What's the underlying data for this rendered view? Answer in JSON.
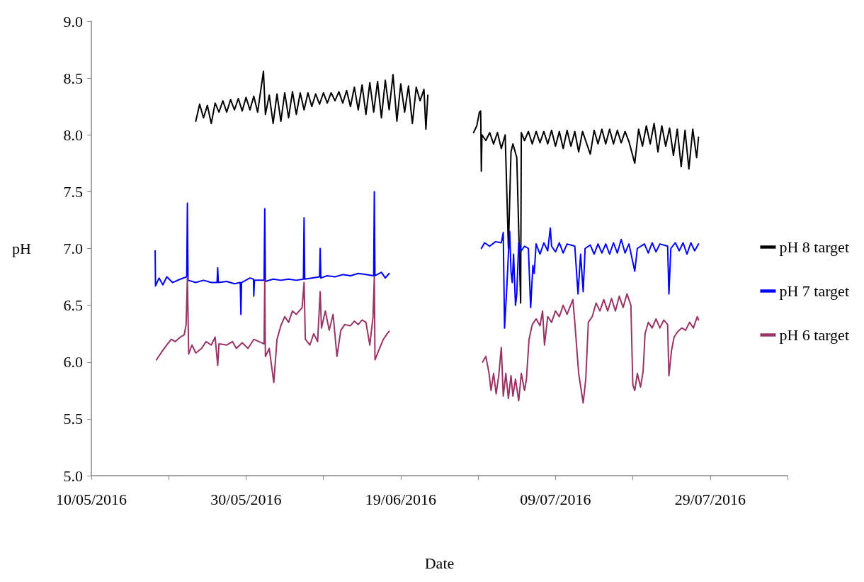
{
  "chart_data": {
    "type": "line",
    "xlabel": "Date",
    "ylabel": "pH",
    "xlim": [
      "2016-05-10",
      "2016-08-08"
    ],
    "xticks": [
      {
        "value": "2016-05-10",
        "label": "10/05/2016"
      },
      {
        "value": "2016-05-20",
        "label": null
      },
      {
        "value": "2016-05-30",
        "label": "30/05/2016"
      },
      {
        "value": "2016-06-09",
        "label": null
      },
      {
        "value": "2016-06-19",
        "label": "19/06/2016"
      },
      {
        "value": "2016-06-29",
        "label": null
      },
      {
        "value": "2016-07-09",
        "label": "09/07/2016"
      },
      {
        "value": "2016-07-19",
        "label": null
      },
      {
        "value": "2016-07-29",
        "label": "29/07/2016"
      },
      {
        "value": "2016-08-08",
        "label": null
      }
    ],
    "ylim": [
      5,
      9
    ],
    "yticks": [
      {
        "value": 5,
        "label": "5.0"
      },
      {
        "value": 5.5,
        "label": "5.5"
      },
      {
        "value": 6,
        "label": "6.0"
      },
      {
        "value": 6.5,
        "label": "6.5"
      },
      {
        "value": 7,
        "label": "7.0"
      },
      {
        "value": 7.5,
        "label": "7.5"
      },
      {
        "value": 8,
        "label": "8.0"
      },
      {
        "value": 8.5,
        "label": "8.5"
      },
      {
        "value": 9,
        "label": "9.0"
      }
    ],
    "grid": false,
    "legend": "right",
    "marker": "none",
    "line_style": "solid",
    "series": [
      {
        "name": "pH 8 target",
        "color": "#000000",
        "x": [
          "2016-05-23T12:00",
          "2016-05-24T00:00",
          "2016-05-24T12:00",
          "2016-05-25T00:00",
          "2016-05-25T12:00",
          "2016-05-26T00:00",
          "2016-05-26T12:00",
          "2016-05-27T00:00",
          "2016-05-27T12:00",
          "2016-05-28T00:00",
          "2016-05-28T12:00",
          "2016-05-29T00:00",
          "2016-05-29T12:00",
          "2016-05-30T00:00",
          "2016-05-30T12:00",
          "2016-05-31T00:00",
          "2016-05-31T12:00",
          "2016-06-01T06:00",
          "2016-06-01T12:00",
          "2016-06-02T00:00",
          "2016-06-02T12:00",
          "2016-06-03T00:00",
          "2016-06-03T12:00",
          "2016-06-04T00:00",
          "2016-06-04T12:00",
          "2016-06-05T00:00",
          "2016-06-05T12:00",
          "2016-06-06T00:00",
          "2016-06-06T12:00",
          "2016-06-07T00:00",
          "2016-06-07T12:00",
          "2016-06-08T00:00",
          "2016-06-08T12:00",
          "2016-06-09T00:00",
          "2016-06-09T12:00",
          "2016-06-10T00:00",
          "2016-06-10T12:00",
          "2016-06-11T00:00",
          "2016-06-11T12:00",
          "2016-06-12T00:00",
          "2016-06-12T12:00",
          "2016-06-13T00:00",
          "2016-06-13T12:00",
          "2016-06-14T00:00",
          "2016-06-14T12:00",
          "2016-06-15T00:00",
          "2016-06-15T12:00",
          "2016-06-16T00:00",
          "2016-06-16T12:00",
          "2016-06-17T00:00",
          "2016-06-17T12:00",
          "2016-06-18T00:00",
          "2016-06-18T12:00",
          "2016-06-19T00:00",
          "2016-06-19T12:00",
          "2016-06-20T00:00",
          "2016-06-20T12:00",
          "2016-06-21T00:00",
          "2016-06-21T12:00",
          "2016-06-22T00:00",
          "2016-06-22T06:00",
          "2016-06-22T12:00",
          "2016-06-25T00:00",
          "2016-06-28T10:00",
          "2016-06-28T20:00",
          "2016-06-29T04:00",
          "2016-06-29T08:00",
          "2016-06-29T10:00",
          "2016-06-29T12:00",
          "2016-06-30T00:00",
          "2016-06-30T12:00",
          "2016-07-01T00:00",
          "2016-07-01T12:00",
          "2016-07-02T00:00",
          "2016-07-02T12:00",
          "2016-07-02T22:00",
          "2016-07-03T06:00",
          "2016-07-03T12:00",
          "2016-07-04T00:00",
          "2016-07-04T12:00",
          "2016-07-04T14:00",
          "2016-07-05T00:00",
          "2016-07-05T12:00",
          "2016-07-06T00:00",
          "2016-07-06T12:00",
          "2016-07-07T00:00",
          "2016-07-07T12:00",
          "2016-07-08T00:00",
          "2016-07-08T12:00",
          "2016-07-09T00:00",
          "2016-07-09T12:00",
          "2016-07-10T00:00",
          "2016-07-10T12:00",
          "2016-07-11T00:00",
          "2016-07-11T12:00",
          "2016-07-12T00:00",
          "2016-07-12T12:00",
          "2016-07-13T12:00",
          "2016-07-14T00:00",
          "2016-07-14T12:00",
          "2016-07-15T00:00",
          "2016-07-15T12:00",
          "2016-07-16T00:00",
          "2016-07-16T12:00",
          "2016-07-17T00:00",
          "2016-07-17T12:00",
          "2016-07-18T00:00",
          "2016-07-18T12:00",
          "2016-07-19T06:00",
          "2016-07-19T18:00",
          "2016-07-20T06:00",
          "2016-07-20T18:00",
          "2016-07-21T06:00",
          "2016-07-21T18:00",
          "2016-07-22T06:00",
          "2016-07-22T18:00",
          "2016-07-23T06:00",
          "2016-07-23T18:00",
          "2016-07-24T06:00",
          "2016-07-24T18:00",
          "2016-07-25T06:00",
          "2016-07-25T18:00",
          "2016-07-26T06:00",
          "2016-07-26T18:00",
          "2016-07-27T06:00",
          "2016-07-27T12:00"
        ],
        "values": [
          8.12,
          8.27,
          8.15,
          8.26,
          8.1,
          8.28,
          8.2,
          8.3,
          8.2,
          8.31,
          8.22,
          8.32,
          8.21,
          8.33,
          8.22,
          8.34,
          8.2,
          8.56,
          8.18,
          8.35,
          8.1,
          8.36,
          8.12,
          8.37,
          8.15,
          8.38,
          8.18,
          8.37,
          8.22,
          8.37,
          8.25,
          8.36,
          8.27,
          8.37,
          8.28,
          8.37,
          8.3,
          8.38,
          8.28,
          8.39,
          8.25,
          8.42,
          8.22,
          8.44,
          8.18,
          8.46,
          8.2,
          8.47,
          8.15,
          8.48,
          8.22,
          8.53,
          8.12,
          8.45,
          8.2,
          8.43,
          8.1,
          8.42,
          8.3,
          8.4,
          8.05,
          8.35,
          null,
          8.02,
          8.08,
          8.2,
          8.21,
          7.68,
          8.0,
          7.95,
          8.02,
          7.92,
          8.02,
          7.88,
          8.0,
          7.0,
          7.85,
          7.92,
          7.8,
          6.52,
          8.02,
          7.95,
          8.03,
          7.92,
          8.03,
          7.93,
          8.03,
          7.92,
          8.04,
          7.9,
          8.03,
          7.88,
          8.04,
          7.9,
          8.03,
          7.85,
          8.03,
          7.83,
          8.04,
          7.92,
          8.05,
          7.92,
          8.05,
          7.92,
          8.04,
          7.93,
          8.03,
          7.94,
          7.75,
          8.05,
          7.9,
          8.08,
          7.92,
          8.1,
          7.85,
          8.08,
          7.9,
          8.06,
          7.82,
          8.05,
          7.72,
          8.04,
          7.7,
          8.05,
          7.8,
          7.98
        ]
      },
      {
        "name": "pH 7 target",
        "color": "#0000ff",
        "x": [
          "2016-05-18T06:00",
          "2016-05-18T07:00",
          "2016-05-18T18:00",
          "2016-05-19T06:00",
          "2016-05-19T18:00",
          "2016-05-20T12:00",
          "2016-05-21T12:00",
          "2016-05-22T08:00",
          "2016-05-22T10:00",
          "2016-05-22T12:00",
          "2016-05-23T12:00",
          "2016-05-24T12:00",
          "2016-05-25T12:00",
          "2016-05-26T06:00",
          "2016-05-26T08:00",
          "2016-05-26T10:00",
          "2016-05-27T12:00",
          "2016-05-28T12:00",
          "2016-05-29T06:00",
          "2016-05-29T08:00",
          "2016-05-29T10:00",
          "2016-05-30T12:00",
          "2016-05-30T23:00",
          "2016-05-31T00:00",
          "2016-05-31T02:00",
          "2016-06-01T08:00",
          "2016-06-01T10:00",
          "2016-06-01T12:00",
          "2016-06-02T12:00",
          "2016-06-03T12:00",
          "2016-06-04T12:00",
          "2016-06-05T12:00",
          "2016-06-06T10:00",
          "2016-06-06T12:00",
          "2016-06-06T14:00",
          "2016-06-07T12:00",
          "2016-06-08T12:00",
          "2016-06-08T14:00",
          "2016-06-08T16:00",
          "2016-06-09T12:00",
          "2016-06-10T12:00",
          "2016-06-11T12:00",
          "2016-06-12T12:00",
          "2016-06-13T12:00",
          "2016-06-14T12:00",
          "2016-06-15T12:00",
          "2016-06-15T14:00",
          "2016-06-15T16:00",
          "2016-06-16T12:00",
          "2016-06-17T00:00",
          "2016-06-17T12:00",
          "2016-06-25T00:00",
          "2016-06-29T10:00",
          "2016-06-29T20:00",
          "2016-06-30T12:00",
          "2016-07-01T06:00",
          "2016-07-02T00:00",
          "2016-07-02T06:00",
          "2016-07-02T10:00",
          "2016-07-02T16:00",
          "2016-07-02T22:00",
          "2016-07-03T02:00",
          "2016-07-03T06:00",
          "2016-07-03T10:00",
          "2016-07-03T14:00",
          "2016-07-03T20:00",
          "2016-07-04T00:00",
          "2016-07-04T06:00",
          "2016-07-04T14:00",
          "2016-07-05T00:00",
          "2016-07-05T12:00",
          "2016-07-05T19:00",
          "2016-07-06T02:00",
          "2016-07-06T06:00",
          "2016-07-06T12:00",
          "2016-07-07T00:00",
          "2016-07-07T12:00",
          "2016-07-08T00:00",
          "2016-07-08T08:00",
          "2016-07-08T12:00",
          "2016-07-09T00:00",
          "2016-07-09T12:00",
          "2016-07-10T00:00",
          "2016-07-10T12:00",
          "2016-07-11T12:00",
          "2016-07-11T22:00",
          "2016-07-12T06:00",
          "2016-07-12T14:00",
          "2016-07-12T20:00",
          "2016-07-13T12:00",
          "2016-07-14T00:00",
          "2016-07-14T12:00",
          "2016-07-15T00:00",
          "2016-07-15T12:00",
          "2016-07-16T00:00",
          "2016-07-16T12:00",
          "2016-07-17T00:00",
          "2016-07-17T12:00",
          "2016-07-18T00:00",
          "2016-07-18T12:00",
          "2016-07-19T06:00",
          "2016-07-19T14:00",
          "2016-07-20T12:00",
          "2016-07-21T00:00",
          "2016-07-21T12:00",
          "2016-07-22T00:00",
          "2016-07-22T12:00",
          "2016-07-23T12:00",
          "2016-07-23T16:00",
          "2016-07-23T22:00",
          "2016-07-24T12:00",
          "2016-07-25T00:00",
          "2016-07-25T12:00",
          "2016-07-26T00:00",
          "2016-07-26T12:00",
          "2016-07-27T00:00",
          "2016-07-27T12:00"
        ],
        "values": [
          6.98,
          6.67,
          6.74,
          6.68,
          6.75,
          6.7,
          6.73,
          6.75,
          7.4,
          6.72,
          6.7,
          6.72,
          6.7,
          6.7,
          6.83,
          6.7,
          6.71,
          6.69,
          6.7,
          6.42,
          6.7,
          6.74,
          6.73,
          6.58,
          6.72,
          6.72,
          7.35,
          6.71,
          6.73,
          6.72,
          6.73,
          6.72,
          6.73,
          7.27,
          6.73,
          6.74,
          6.75,
          7.0,
          6.74,
          6.76,
          6.75,
          6.77,
          6.76,
          6.78,
          6.77,
          6.76,
          7.5,
          6.76,
          6.79,
          6.74,
          6.78,
          null,
          7.0,
          7.05,
          7.02,
          7.06,
          7.05,
          7.14,
          6.3,
          6.6,
          6.95,
          7.15,
          6.8,
          6.7,
          6.95,
          6.5,
          6.6,
          7.05,
          6.98,
          7.02,
          7.0,
          6.48,
          6.85,
          6.78,
          7.04,
          6.95,
          7.05,
          6.98,
          7.18,
          7.02,
          6.97,
          7.05,
          6.96,
          7.04,
          7.02,
          6.6,
          6.95,
          6.62,
          7.0,
          7.03,
          6.95,
          7.04,
          6.96,
          7.04,
          6.95,
          7.05,
          6.96,
          7.08,
          6.96,
          7.04,
          6.8,
          7.0,
          7.04,
          6.96,
          7.05,
          6.97,
          7.04,
          7.02,
          6.6,
          7.0,
          7.05,
          6.98,
          7.05,
          6.95,
          7.05,
          6.98,
          7.04
        ]
      },
      {
        "name": "pH 6 target",
        "color": "#993366",
        "x": [
          "2016-05-18T10:00",
          "2016-05-19T00:00",
          "2016-05-19T18:00",
          "2016-05-20T08:00",
          "2016-05-20T20:00",
          "2016-05-21T12:00",
          "2016-05-22T00:00",
          "2016-05-22T06:00",
          "2016-05-22T10:00",
          "2016-05-22T14:00",
          "2016-05-23T00:00",
          "2016-05-23T12:00",
          "2016-05-24T06:00",
          "2016-05-24T20:00",
          "2016-05-25T12:00",
          "2016-05-26T00:00",
          "2016-05-26T08:00",
          "2016-05-26T12:00",
          "2016-05-27T12:00",
          "2016-05-28T06:00",
          "2016-05-28T18:00",
          "2016-05-29T12:00",
          "2016-05-30T06:00",
          "2016-05-31T00:00",
          "2016-06-01T08:00",
          "2016-06-01T10:00",
          "2016-06-01T12:00",
          "2016-06-02T00:00",
          "2016-06-02T14:00",
          "2016-06-03T00:00",
          "2016-06-03T12:00",
          "2016-06-04T00:00",
          "2016-06-04T12:00",
          "2016-06-05T00:00",
          "2016-06-05T12:00",
          "2016-06-06T06:00",
          "2016-06-06T12:00",
          "2016-06-06T16:00",
          "2016-06-07T06:00",
          "2016-06-07T18:00",
          "2016-06-08T06:00",
          "2016-06-08T14:00",
          "2016-06-08T18:00",
          "2016-06-09T06:00",
          "2016-06-09T18:00",
          "2016-06-10T06:00",
          "2016-06-10T18:00",
          "2016-06-11T06:00",
          "2016-06-11T18:00",
          "2016-06-12T12:00",
          "2016-06-13T00:00",
          "2016-06-13T12:00",
          "2016-06-14T00:00",
          "2016-06-14T12:00",
          "2016-06-15T00:00",
          "2016-06-15T10:00",
          "2016-06-15T14:00",
          "2016-06-15T16:00",
          "2016-06-16T06:00",
          "2016-06-16T18:00",
          "2016-06-17T06:00",
          "2016-06-17T12:00",
          "2016-06-25T00:00",
          "2016-06-29T14:00",
          "2016-06-30T00:00",
          "2016-06-30T10:00",
          "2016-06-30T16:00",
          "2016-07-01T00:00",
          "2016-07-01T08:00",
          "2016-07-01T16:00",
          "2016-07-02T00:00",
          "2016-07-02T06:00",
          "2016-07-02T14:00",
          "2016-07-02T22:00",
          "2016-07-03T06:00",
          "2016-07-03T12:00",
          "2016-07-03T20:00",
          "2016-07-04T06:00",
          "2016-07-04T14:00",
          "2016-07-05T00:00",
          "2016-07-05T06:00",
          "2016-07-05T14:00",
          "2016-07-06T00:00",
          "2016-07-06T12:00",
          "2016-07-07T00:00",
          "2016-07-07T08:00",
          "2016-07-07T14:00",
          "2016-07-08T00:00",
          "2016-07-08T12:00",
          "2016-07-09T00:00",
          "2016-07-09T12:00",
          "2016-07-10T00:00",
          "2016-07-10T12:00",
          "2016-07-11T06:00",
          "2016-07-11T12:00",
          "2016-07-12T00:00",
          "2016-07-12T14:00",
          "2016-07-12T22:00",
          "2016-07-13T06:00",
          "2016-07-13T18:00",
          "2016-07-14T06:00",
          "2016-07-14T18:00",
          "2016-07-15T06:00",
          "2016-07-15T18:00",
          "2016-07-16T06:00",
          "2016-07-16T18:00",
          "2016-07-17T06:00",
          "2016-07-17T18:00",
          "2016-07-18T06:00",
          "2016-07-18T18:00",
          "2016-07-19T00:00",
          "2016-07-19T06:00",
          "2016-07-19T14:00",
          "2016-07-20T00:00",
          "2016-07-20T08:00",
          "2016-07-20T14:00",
          "2016-07-21T00:00",
          "2016-07-21T12:00",
          "2016-07-22T00:00",
          "2016-07-22T12:00",
          "2016-07-23T00:00",
          "2016-07-23T12:00",
          "2016-07-23T16:00",
          "2016-07-24T00:00",
          "2016-07-24T08:00",
          "2016-07-24T20:00",
          "2016-07-25T08:00",
          "2016-07-25T20:00",
          "2016-07-26T08:00",
          "2016-07-26T20:00",
          "2016-07-27T08:00",
          "2016-07-27T12:00"
        ],
        "values": [
          6.02,
          6.08,
          6.15,
          6.2,
          6.18,
          6.22,
          6.24,
          6.33,
          6.75,
          6.07,
          6.15,
          6.08,
          6.12,
          6.18,
          6.15,
          6.22,
          5.97,
          6.16,
          6.15,
          6.18,
          6.12,
          6.17,
          6.12,
          6.2,
          6.16,
          6.72,
          6.05,
          6.12,
          5.82,
          6.2,
          6.32,
          6.4,
          6.35,
          6.45,
          6.42,
          6.48,
          6.7,
          6.2,
          6.15,
          6.25,
          6.18,
          6.62,
          6.3,
          6.45,
          6.28,
          6.42,
          6.05,
          6.28,
          6.33,
          6.32,
          6.36,
          6.33,
          6.37,
          6.35,
          6.15,
          6.4,
          6.75,
          6.02,
          6.12,
          6.2,
          6.25,
          6.27,
          null,
          6.0,
          6.05,
          5.9,
          5.75,
          5.9,
          5.72,
          5.88,
          6.13,
          5.7,
          5.9,
          5.68,
          5.88,
          5.7,
          5.85,
          5.66,
          5.9,
          5.75,
          5.85,
          6.2,
          6.33,
          6.38,
          6.32,
          6.45,
          6.15,
          6.4,
          6.35,
          6.45,
          6.4,
          6.5,
          6.42,
          6.55,
          6.35,
          5.9,
          5.64,
          5.85,
          6.35,
          6.4,
          6.52,
          6.45,
          6.55,
          6.45,
          6.56,
          6.45,
          6.58,
          6.48,
          6.6,
          6.5,
          5.8,
          5.75,
          5.9,
          5.78,
          5.92,
          6.25,
          6.35,
          6.3,
          6.38,
          6.3,
          6.37,
          6.33,
          5.88,
          6.1,
          6.22,
          6.27,
          6.3,
          6.28,
          6.35,
          6.3,
          6.4,
          6.37
        ]
      }
    ]
  }
}
